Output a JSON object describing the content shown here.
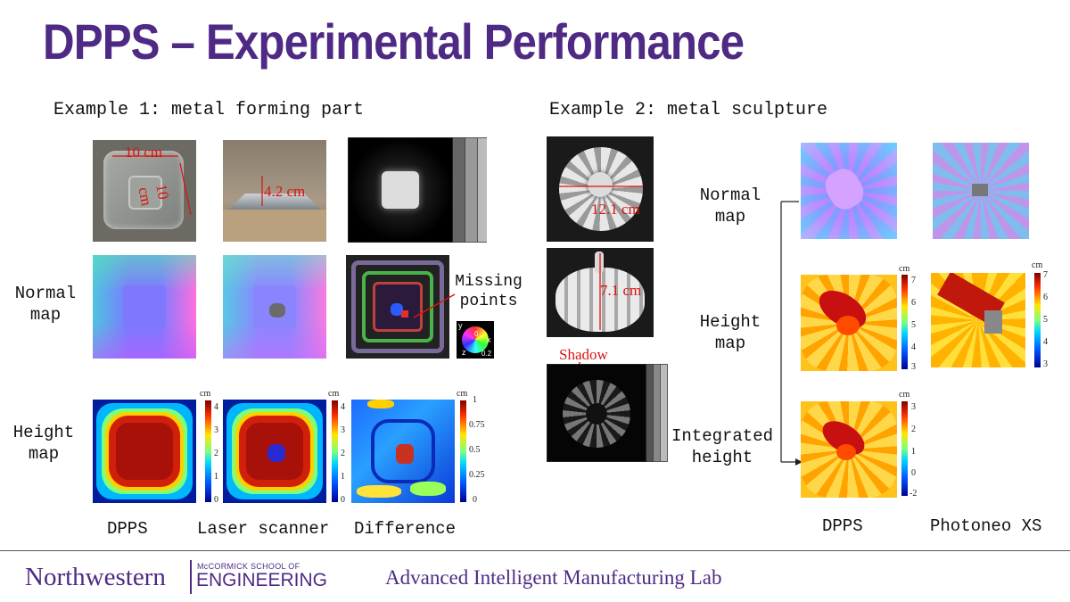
{
  "title": "DPPS – Experimental Performance",
  "example1": {
    "heading": "Example 1: metal forming part",
    "row_labels": {
      "normal": [
        "Normal",
        "map"
      ],
      "height": [
        "Height",
        "map"
      ]
    },
    "photo_dims": {
      "width": "10 cm",
      "depth": "10 cm",
      "height": "4.2 cm"
    },
    "missing_points": [
      "Missing",
      "points"
    ],
    "axes_legend": {
      "x": "x",
      "y": "y",
      "z": "z",
      "value": "0.2",
      "zero": "0"
    },
    "colorbar_dpps": {
      "unit": "cm",
      "ticks": [
        "4",
        "3",
        "2",
        "1",
        "0"
      ]
    },
    "colorbar_laser": {
      "unit": "cm",
      "ticks": [
        "4",
        "3",
        "2",
        "1",
        "0"
      ]
    },
    "colorbar_diff": {
      "unit": "cm",
      "ticks": [
        "1",
        "0.75",
        "0.5",
        "0.25",
        "0"
      ]
    },
    "columns": [
      "DPPS",
      "Laser scanner",
      "Difference"
    ]
  },
  "example2": {
    "heading": "Example 2: metal sculpture",
    "photo_dims": {
      "diameter": "12.1 cm",
      "height": "7.1 cm"
    },
    "shadow": "Shadow",
    "row_labels": {
      "normal": [
        "Normal",
        "map"
      ],
      "height": [
        "Height",
        "map"
      ],
      "integrated": [
        "Integrated",
        "height"
      ]
    },
    "colorbar_dpps": {
      "unit": "cm",
      "ticks": [
        "7",
        "6",
        "5",
        "4",
        "3"
      ]
    },
    "colorbar_photoneo": {
      "unit": "cm",
      "ticks": [
        "7",
        "6",
        "5",
        "4",
        "3"
      ]
    },
    "colorbar_integrated": {
      "unit": "cm",
      "ticks": [
        "3",
        "2",
        "1",
        "0",
        "-2"
      ]
    },
    "columns": [
      "DPPS",
      "Photoneo XS"
    ]
  },
  "footer": {
    "university": "Northwestern",
    "school_small": "McCORMICK SCHOOL OF",
    "school_big": "ENGINEERING",
    "lab": "Advanced Intelligent Manufacturing Lab"
  },
  "colors": {
    "purple": "#4e2a84",
    "annotation_red": "#dd1111"
  }
}
